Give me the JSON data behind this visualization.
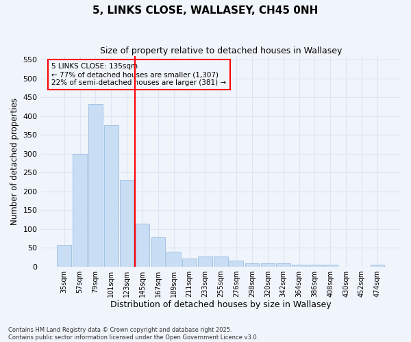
{
  "title": "5, LINKS CLOSE, WALLASEY, CH45 0NH",
  "subtitle": "Size of property relative to detached houses in Wallasey",
  "xlabel": "Distribution of detached houses by size in Wallasey",
  "ylabel": "Number of detached properties",
  "categories": [
    "35sqm",
    "57sqm",
    "79sqm",
    "101sqm",
    "123sqm",
    "145sqm",
    "167sqm",
    "189sqm",
    "211sqm",
    "233sqm",
    "255sqm",
    "276sqm",
    "298sqm",
    "320sqm",
    "342sqm",
    "364sqm",
    "386sqm",
    "408sqm",
    "430sqm",
    "452sqm",
    "474sqm"
  ],
  "values": [
    57,
    300,
    432,
    375,
    230,
    113,
    77,
    39,
    21,
    27,
    27,
    16,
    9,
    9,
    8,
    4,
    4,
    5,
    0,
    0,
    4
  ],
  "bar_color": "#c9ddf5",
  "bar_edge_color": "#9bbde0",
  "vline_x_index": 5,
  "vline_color": "red",
  "annotation_title": "5 LINKS CLOSE: 135sqm",
  "annotation_line1": "← 77% of detached houses are smaller (1,307)",
  "annotation_line2": "22% of semi-detached houses are larger (381) →",
  "annotation_box_color": "red",
  "ylim": [
    0,
    560
  ],
  "yticks": [
    0,
    50,
    100,
    150,
    200,
    250,
    300,
    350,
    400,
    450,
    500,
    550
  ],
  "footnote1": "Contains HM Land Registry data © Crown copyright and database right 2025.",
  "footnote2": "Contains public sector information licensed under the Open Government Licence v3.0.",
  "bg_color": "#f0f4fb",
  "grid_color": "#dce6f5",
  "plot_bg_color": "#f0f4fb"
}
